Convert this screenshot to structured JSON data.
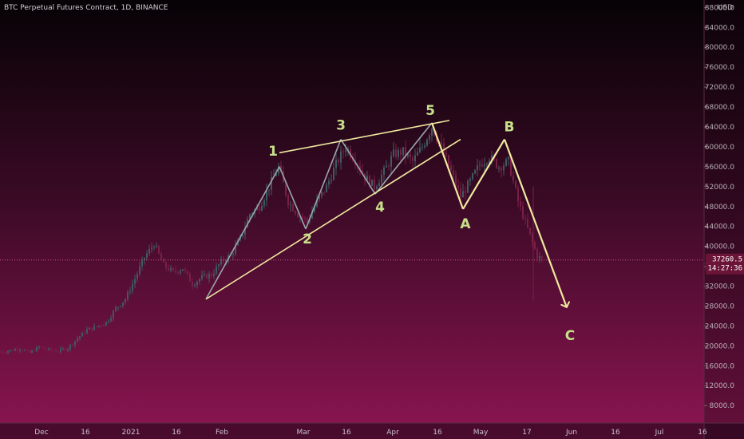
{
  "header": {
    "title": "BTC Perpetual Futures Contract, 1D, BINANCE"
  },
  "axis": {
    "currency": "USD"
  },
  "price_tag": {
    "price": "37260.5",
    "countdown": "14:27:36"
  },
  "colors": {
    "bg_top": "#060205",
    "bg_bottom": "#8d1552",
    "wave_line": "#efeaa0",
    "wave_label": "#c8e08a",
    "candle": "#3f5a63",
    "candle_alt": "#7a1f45",
    "gridline": "#3a1a2c",
    "price_tag_bg": "#6b1438",
    "current_price_line": "#c65a7e"
  },
  "chart_data": {
    "type": "line",
    "title": "BTC Perpetual Futures Contract, 1D, BINANCE",
    "xlabel": "",
    "ylabel": "USD",
    "ylim": [
      4500,
      89500
    ],
    "y_ticks": [
      8000,
      12000,
      16000,
      20000,
      24000,
      28000,
      32000,
      36000,
      40000,
      44000,
      48000,
      52000,
      56000,
      60000,
      64000,
      68000,
      72000,
      76000,
      80000,
      84000,
      88000
    ],
    "x_ticks": [
      "Dec",
      "16",
      "2021",
      "16",
      "Feb",
      "Mar",
      "16",
      "Apr",
      "16",
      "May",
      "17",
      "Jun",
      "16",
      "Jul",
      "16"
    ],
    "grid": false,
    "legend": "none",
    "current_price": 37260.5,
    "series": [
      {
        "values": [
          [
            0,
            18800
          ],
          [
            12,
            19100
          ],
          [
            24,
            19500
          ],
          [
            36,
            18600
          ],
          [
            48,
            19800
          ],
          [
            60,
            19200
          ],
          [
            72,
            19000
          ],
          [
            84,
            19600
          ],
          [
            96,
            21500
          ],
          [
            108,
            23200
          ],
          [
            120,
            23900
          ],
          [
            132,
            24700
          ],
          [
            144,
            27500
          ],
          [
            156,
            29400
          ],
          [
            168,
            33500
          ],
          [
            180,
            37800
          ],
          [
            192,
            40500
          ],
          [
            204,
            36200
          ],
          [
            216,
            34800
          ],
          [
            228,
            35600
          ],
          [
            240,
            32400
          ],
          [
            252,
            33800
          ],
          [
            264,
            34300
          ],
          [
            276,
            36900
          ],
          [
            288,
            38200
          ],
          [
            300,
            41500
          ],
          [
            312,
            46500
          ],
          [
            324,
            48000
          ],
          [
            336,
            52000
          ],
          [
            348,
            56000
          ],
          [
            360,
            49000
          ],
          [
            372,
            46500
          ],
          [
            384,
            45000
          ],
          [
            396,
            49000
          ],
          [
            408,
            52000
          ],
          [
            420,
            56500
          ],
          [
            432,
            60000
          ],
          [
            444,
            57500
          ],
          [
            456,
            54000
          ],
          [
            468,
            52000
          ],
          [
            480,
            55000
          ],
          [
            492,
            58500
          ],
          [
            504,
            59000
          ],
          [
            516,
            57000
          ],
          [
            528,
            60000
          ],
          [
            540,
            64000
          ],
          [
            552,
            60000
          ],
          [
            564,
            55000
          ],
          [
            576,
            50000
          ],
          [
            588,
            53000
          ],
          [
            600,
            56500
          ],
          [
            612,
            58000
          ],
          [
            624,
            56000
          ],
          [
            636,
            57000
          ],
          [
            648,
            49000
          ],
          [
            660,
            43500
          ],
          [
            672,
            38000
          ],
          [
            680,
            37300
          ]
        ]
      }
    ],
    "wave_points": [
      {
        "label": "",
        "x": 258,
        "y": 29400
      },
      {
        "label": "1",
        "x": 350,
        "y": 56000
      },
      {
        "label": "2",
        "x": 383,
        "y": 43500
      },
      {
        "label": "3",
        "x": 427,
        "y": 61500
      },
      {
        "label": "4",
        "x": 470,
        "y": 50500
      },
      {
        "label": "5",
        "x": 541,
        "y": 64800
      },
      {
        "label": "A",
        "x": 580,
        "y": 47500
      },
      {
        "label": "B",
        "x": 632,
        "y": 61500
      },
      {
        "label": "C",
        "x": 714,
        "y": 26000
      }
    ],
    "trendlines": [
      {
        "from": [
          350,
          58800
        ],
        "to": [
          563,
          65300
        ]
      },
      {
        "from": [
          258,
          29400
        ],
        "to": [
          577,
          61500
        ]
      }
    ],
    "annotations": [
      "1",
      "2",
      "3",
      "4",
      "5",
      "A",
      "B",
      "C"
    ]
  }
}
